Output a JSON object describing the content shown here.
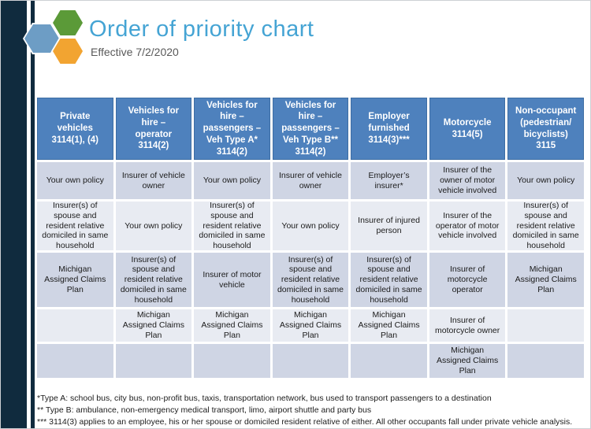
{
  "page": {
    "title": "Order of priority chart",
    "subtitle": "Effective 7/2/2020"
  },
  "logo": {
    "hexagons": [
      "blue-hexagon",
      "green-hexagon",
      "orange-hexagon"
    ],
    "colors": {
      "blue": "#6d9dc5",
      "green": "#5b9a38",
      "orange": "#f2a431"
    }
  },
  "table": {
    "headers": [
      "Private\nvehicles\n3114(1), (4)",
      "Vehicles for\nhire –\noperator\n3114(2)",
      "Vehicles for\nhire –\npassengers –\nVeh Type A*\n3114(2)",
      "Vehicles for\nhire –\npassengers –\nVeh Type B**\n3114(2)",
      "Employer\nfurnished\n3114(3)***",
      "Motorcycle\n3114(5)",
      "Non-occupant\n(pedestrian/\nbicyclists)\n3115"
    ],
    "rows": [
      [
        "Your own policy",
        "Insurer of vehicle owner",
        "Your own policy",
        "Insurer of vehicle owner",
        "Employer’s insurer*",
        "Insurer of the owner of motor vehicle involved",
        "Your own policy"
      ],
      [
        "Insurer(s) of spouse and resident relative domiciled in same household",
        "Your own policy",
        "Insurer(s) of spouse and resident relative domiciled in same household",
        "Your own policy",
        "Insurer of injured person",
        "Insurer of the operator of motor vehicle involved",
        "Insurer(s) of spouse and resident relative domiciled in same household"
      ],
      [
        "Michigan Assigned Claims Plan",
        "Insurer(s) of spouse and resident relative domiciled in same household",
        "Insurer of motor vehicle",
        "Insurer(s) of spouse and resident relative domiciled in same household",
        "Insurer(s) of spouse and resident relative domiciled in same household",
        "Insurer of motorcycle operator",
        "Michigan Assigned Claims Plan"
      ],
      [
        "",
        "Michigan Assigned Claims Plan",
        "Michigan Assigned Claims Plan",
        "Michigan Assigned Claims Plan",
        "Michigan Assigned Claims Plan",
        "Insurer of motorcycle owner",
        ""
      ],
      [
        "",
        "",
        "",
        "",
        "",
        "Michigan Assigned Claims Plan",
        ""
      ]
    ]
  },
  "footnotes": [
    "*Type A: school bus, city bus, non-profit bus, taxis, transportation network, bus used to transport passengers to a destination",
    "** Type B: ambulance, non-emergency  medical transport, limo, airport shuttle and party bus",
    "*** 3114(3) applies to an employee, his or her spouse or domiciled resident relative  of either. All other occupants fall under private vehicle analysis."
  ],
  "colors": {
    "sidebar_navy": "#102b3e",
    "header_blue": "#4e81bd",
    "band_dark": "#cfd5e4",
    "band_light": "#e8ebf2",
    "title_blue": "#45a4d4",
    "subtitle_gray": "#595959"
  }
}
